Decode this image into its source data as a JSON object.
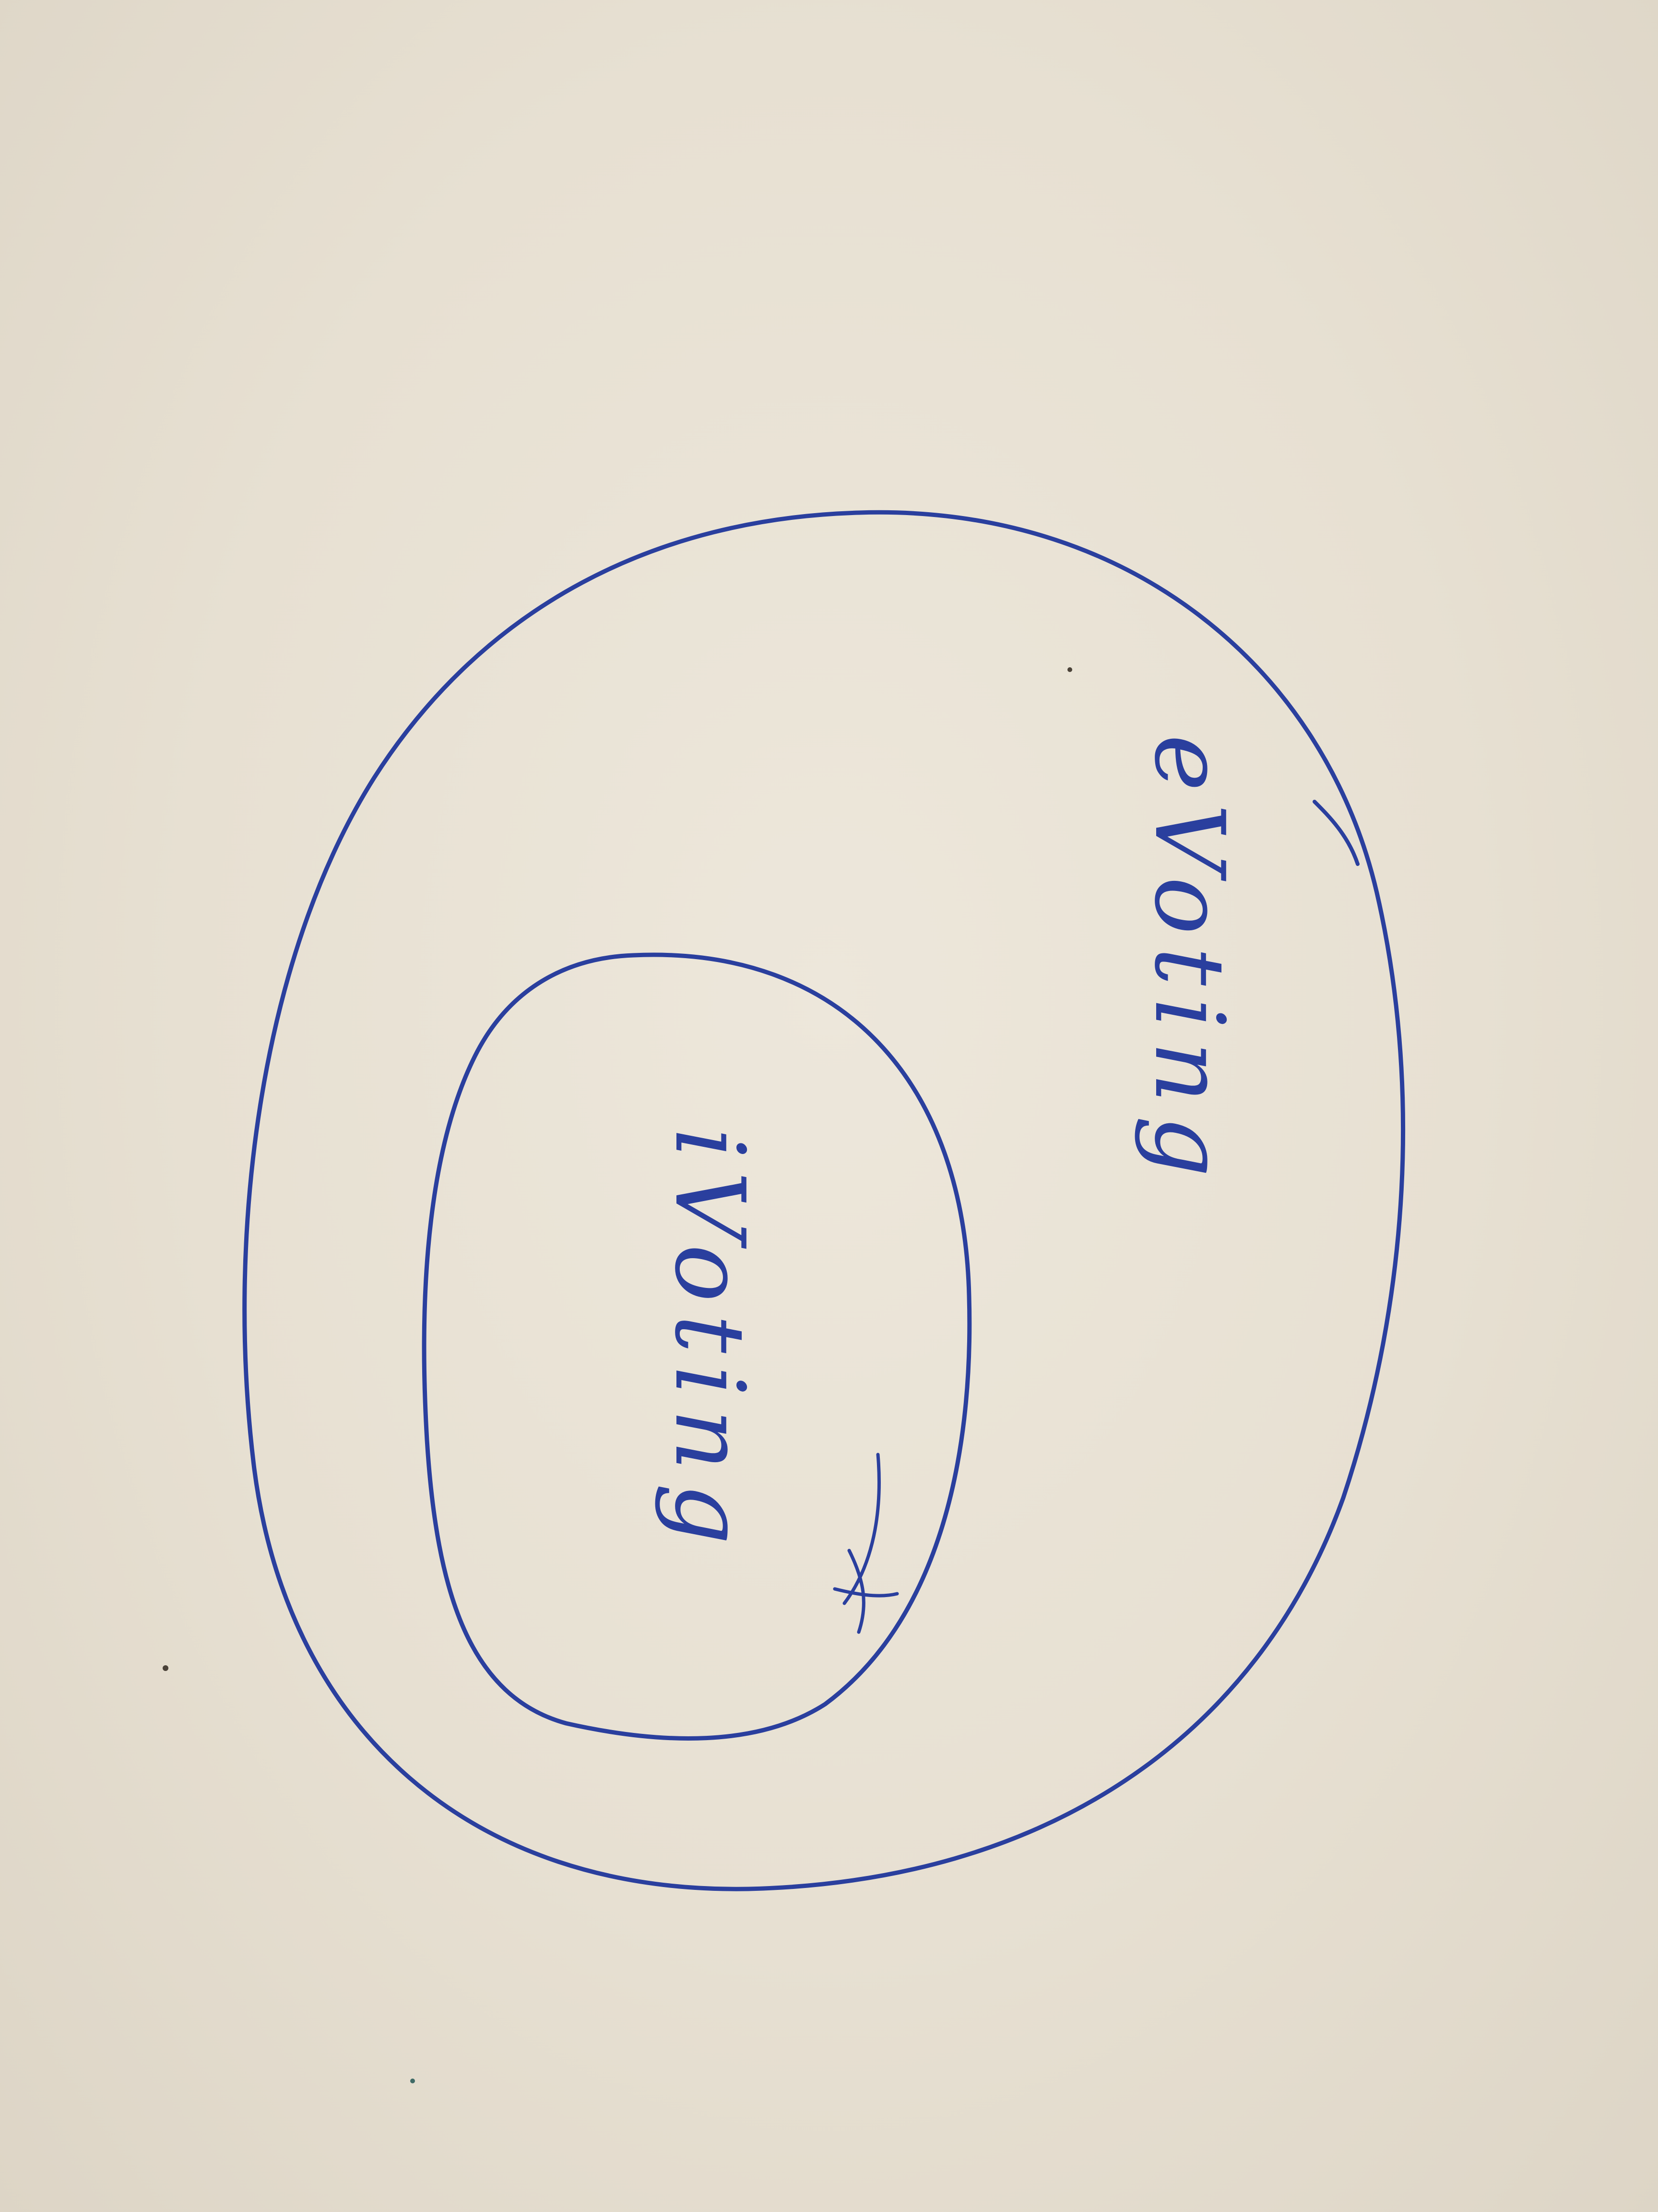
{
  "diagram": {
    "outer_region": {
      "label": "eVoting"
    },
    "inner_region": {
      "label": "iVoting"
    }
  },
  "colors": {
    "paper": "#e8e1d4",
    "ink": "#2a3f9e"
  }
}
